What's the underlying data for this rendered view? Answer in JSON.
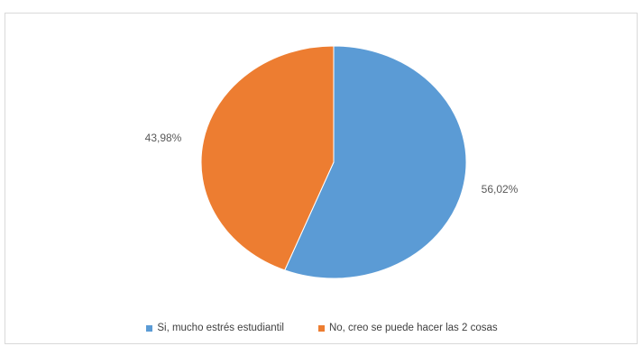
{
  "top_text": "",
  "chart_data": {
    "type": "pie",
    "title": "",
    "slices": [
      {
        "label": "Si, mucho estrés estudiantil",
        "value": 56.02,
        "display": "56,02%",
        "color": "#5b9bd5"
      },
      {
        "label": "No, creo se puede hacer las 2 cosas",
        "value": 43.98,
        "display": "43,98%",
        "color": "#ed7d31"
      }
    ],
    "legend_position": "bottom"
  }
}
